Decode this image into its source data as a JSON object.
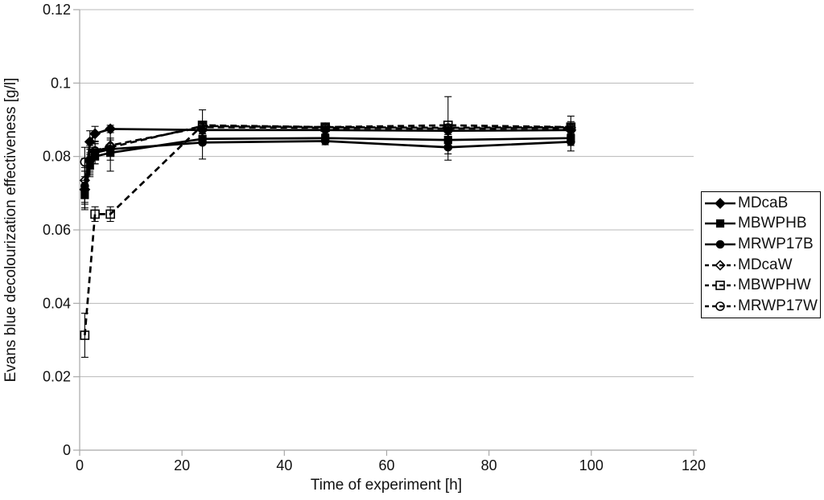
{
  "figure": {
    "background": "#ffffff"
  },
  "colors": {
    "series": "#000000",
    "grid": "#b8b8b8",
    "axis": "#a8a8a8",
    "text": "#111111",
    "background": "#ffffff"
  },
  "chart_data": {
    "type": "line",
    "title": "",
    "xlabel": "Time of experiment [h]",
    "ylabel": "Evans blue decolourization effectiveness [g/l]",
    "xlim": [
      0,
      120
    ],
    "ylim": [
      0,
      0.12
    ],
    "grid": true,
    "legend_position": "right-outside",
    "x_ticks": [
      0,
      20,
      40,
      60,
      80,
      100,
      120
    ],
    "x_tick_labels": [
      "0",
      "20",
      "40",
      "60",
      "80",
      "100",
      "120"
    ],
    "y_ticks": [
      0,
      0.02,
      0.04,
      0.06,
      0.08,
      0.1,
      0.12
    ],
    "y_tick_labels": [
      "0",
      "0.02",
      "0.04",
      "0.06",
      "0.08",
      "0.1",
      "0.12"
    ],
    "series": [
      {
        "name": "MDcaB",
        "line": "solid",
        "marker": "diamond",
        "marker_fill": "filled",
        "x": [
          1,
          2,
          3,
          6,
          24,
          48,
          72,
          96
        ],
        "y": [
          0.071,
          0.084,
          0.0862,
          0.0875,
          0.0872,
          0.0872,
          0.087,
          0.0872
        ],
        "yerr": [
          0.005,
          0.003,
          0.002,
          0.001,
          0.001,
          0.001,
          0.001,
          0.001
        ]
      },
      {
        "name": "MBWPHB",
        "line": "solid",
        "marker": "square",
        "marker_fill": "filled",
        "x": [
          1,
          2,
          3,
          6,
          24,
          48,
          72,
          96
        ],
        "y": [
          0.0695,
          0.0775,
          0.08,
          0.081,
          0.0848,
          0.085,
          0.0845,
          0.085
        ],
        "yerr": [
          0.004,
          0.003,
          0.002,
          0.002,
          0.0015,
          0.001,
          0.002,
          0.002
        ]
      },
      {
        "name": "MRWP17B",
        "line": "solid",
        "marker": "circle",
        "marker_fill": "filled",
        "x": [
          1,
          2,
          3,
          6,
          24,
          48,
          72,
          96
        ],
        "y": [
          0.072,
          0.079,
          0.081,
          0.082,
          0.0838,
          0.0842,
          0.0825,
          0.084
        ],
        "yerr": [
          0.005,
          0.004,
          0.003,
          0.006,
          0.0045,
          0.001,
          0.0035,
          0.0025
        ]
      },
      {
        "name": "MDcaW",
        "line": "dashed",
        "marker": "diamond",
        "marker_fill": "open",
        "x": [
          1,
          2,
          3,
          6,
          24,
          48,
          72,
          96
        ],
        "y": [
          0.0735,
          0.079,
          0.0815,
          0.083,
          0.088,
          0.0878,
          0.0876,
          0.0878
        ],
        "yerr": [
          0.006,
          0.003,
          0.002,
          0.002,
          0.001,
          0.001,
          0.001,
          0.001
        ]
      },
      {
        "name": "MBWPHW",
        "line": "dashed",
        "marker": "square",
        "marker_fill": "open",
        "x": [
          1,
          3,
          6,
          24,
          48,
          72,
          96
        ],
        "y": [
          0.0313,
          0.0643,
          0.0643,
          0.0885,
          0.088,
          0.0885,
          0.088
        ],
        "yerr": [
          0.006,
          0.002,
          0.002,
          0.0042,
          0.001,
          0.0078,
          0.003
        ]
      },
      {
        "name": "MRWP17W",
        "line": "dashed",
        "marker": "circle",
        "marker_fill": "open",
        "x": [
          1,
          2,
          3,
          6,
          24,
          48,
          72,
          96
        ],
        "y": [
          0.0785,
          0.079,
          0.0815,
          0.0825,
          0.0883,
          0.088,
          0.0878,
          0.088
        ],
        "yerr": [
          0.004,
          0.0035,
          0.002,
          0.002,
          0.001,
          0.001,
          0.001,
          0.0015
        ]
      }
    ]
  }
}
